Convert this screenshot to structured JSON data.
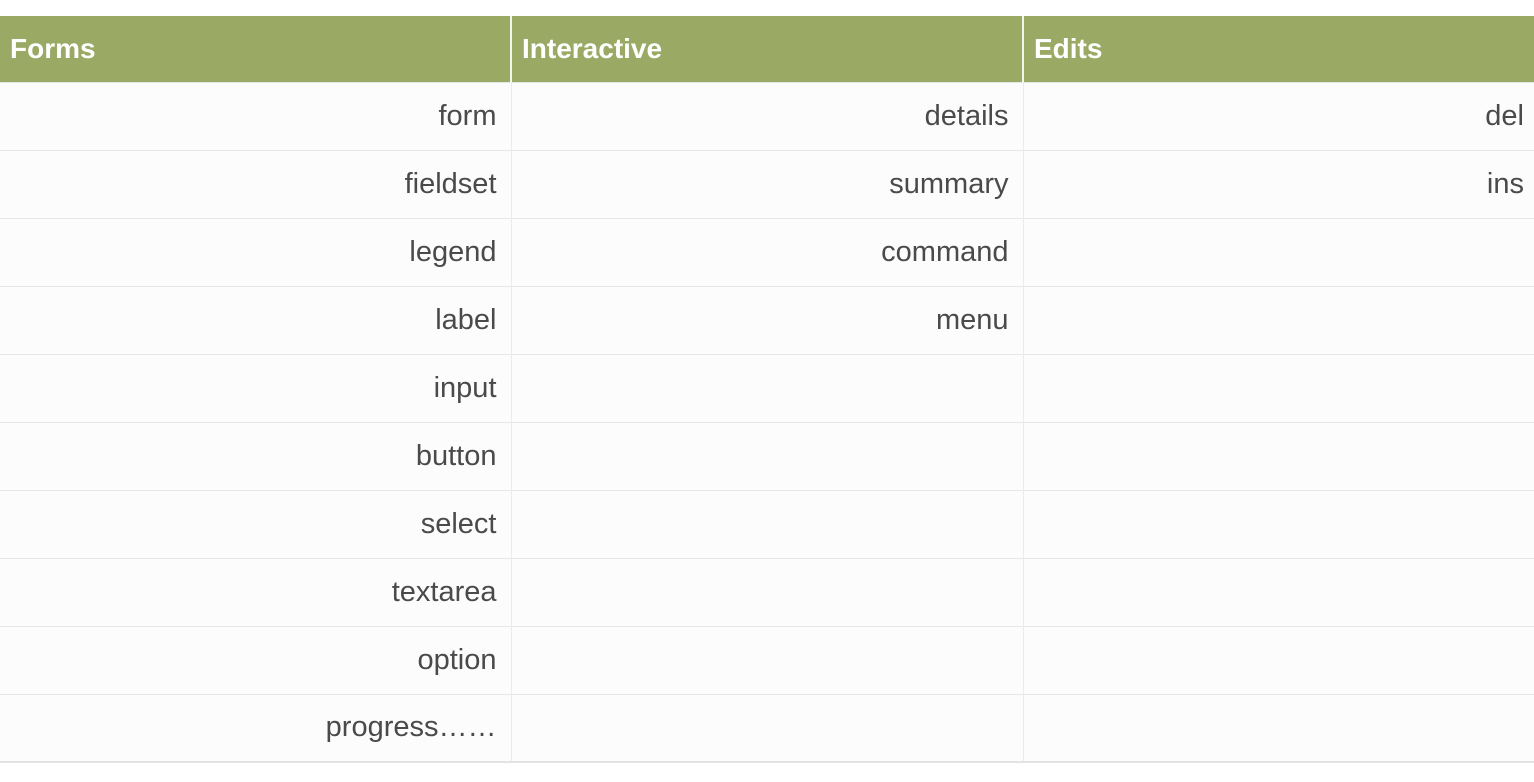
{
  "table": {
    "headers": [
      "Forms",
      "Interactive",
      "Edits"
    ],
    "rows": [
      [
        "form",
        "details",
        "del"
      ],
      [
        "fieldset",
        "summary",
        "ins"
      ],
      [
        "legend",
        "command",
        ""
      ],
      [
        "label",
        "menu",
        ""
      ],
      [
        "input",
        "",
        ""
      ],
      [
        "button",
        "",
        ""
      ],
      [
        "select",
        "",
        ""
      ],
      [
        "textarea",
        "",
        ""
      ],
      [
        "option",
        "",
        ""
      ],
      [
        "progress……",
        "",
        ""
      ]
    ]
  },
  "colors": {
    "header_bg": "#9aaa64",
    "header_text": "#ffffff",
    "cell_text": "#4a4a4a"
  }
}
